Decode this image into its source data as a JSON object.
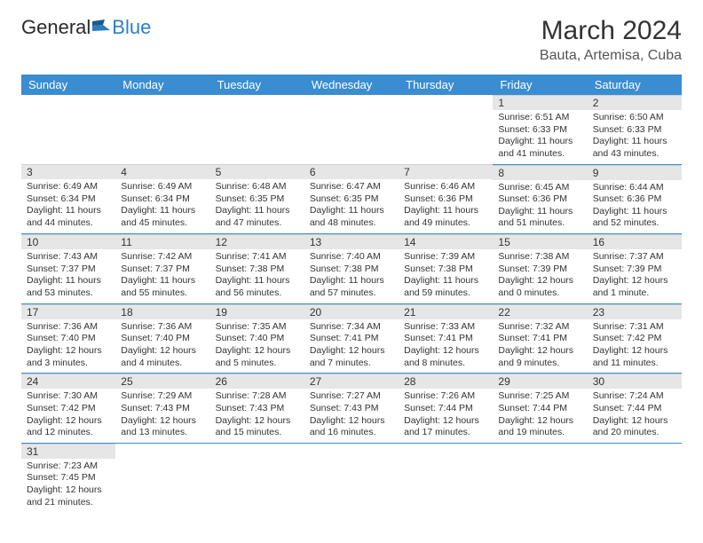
{
  "brand": {
    "part1": "General",
    "part2": "Blue"
  },
  "title": "March 2024",
  "location": "Bauta, Artemisa, Cuba",
  "colors": {
    "header_bg": "#3a8dd0",
    "header_text": "#ffffff",
    "daynum_bg": "#e6e6e6",
    "row_border": "#3a8dd0",
    "logo_blue": "#2a7fc4",
    "logo_dark": "#2a2a2a"
  },
  "weekdays": [
    "Sunday",
    "Monday",
    "Tuesday",
    "Wednesday",
    "Thursday",
    "Friday",
    "Saturday"
  ],
  "weeks": [
    [
      null,
      null,
      null,
      null,
      null,
      {
        "n": "1",
        "sr": "6:51 AM",
        "ss": "6:33 PM",
        "dl": "11 hours and 41 minutes."
      },
      {
        "n": "2",
        "sr": "6:50 AM",
        "ss": "6:33 PM",
        "dl": "11 hours and 43 minutes."
      }
    ],
    [
      {
        "n": "3",
        "sr": "6:49 AM",
        "ss": "6:34 PM",
        "dl": "11 hours and 44 minutes."
      },
      {
        "n": "4",
        "sr": "6:49 AM",
        "ss": "6:34 PM",
        "dl": "11 hours and 45 minutes."
      },
      {
        "n": "5",
        "sr": "6:48 AM",
        "ss": "6:35 PM",
        "dl": "11 hours and 47 minutes."
      },
      {
        "n": "6",
        "sr": "6:47 AM",
        "ss": "6:35 PM",
        "dl": "11 hours and 48 minutes."
      },
      {
        "n": "7",
        "sr": "6:46 AM",
        "ss": "6:36 PM",
        "dl": "11 hours and 49 minutes."
      },
      {
        "n": "8",
        "sr": "6:45 AM",
        "ss": "6:36 PM",
        "dl": "11 hours and 51 minutes."
      },
      {
        "n": "9",
        "sr": "6:44 AM",
        "ss": "6:36 PM",
        "dl": "11 hours and 52 minutes."
      }
    ],
    [
      {
        "n": "10",
        "sr": "7:43 AM",
        "ss": "7:37 PM",
        "dl": "11 hours and 53 minutes."
      },
      {
        "n": "11",
        "sr": "7:42 AM",
        "ss": "7:37 PM",
        "dl": "11 hours and 55 minutes."
      },
      {
        "n": "12",
        "sr": "7:41 AM",
        "ss": "7:38 PM",
        "dl": "11 hours and 56 minutes."
      },
      {
        "n": "13",
        "sr": "7:40 AM",
        "ss": "7:38 PM",
        "dl": "11 hours and 57 minutes."
      },
      {
        "n": "14",
        "sr": "7:39 AM",
        "ss": "7:38 PM",
        "dl": "11 hours and 59 minutes."
      },
      {
        "n": "15",
        "sr": "7:38 AM",
        "ss": "7:39 PM",
        "dl": "12 hours and 0 minutes."
      },
      {
        "n": "16",
        "sr": "7:37 AM",
        "ss": "7:39 PM",
        "dl": "12 hours and 1 minute."
      }
    ],
    [
      {
        "n": "17",
        "sr": "7:36 AM",
        "ss": "7:40 PM",
        "dl": "12 hours and 3 minutes."
      },
      {
        "n": "18",
        "sr": "7:36 AM",
        "ss": "7:40 PM",
        "dl": "12 hours and 4 minutes."
      },
      {
        "n": "19",
        "sr": "7:35 AM",
        "ss": "7:40 PM",
        "dl": "12 hours and 5 minutes."
      },
      {
        "n": "20",
        "sr": "7:34 AM",
        "ss": "7:41 PM",
        "dl": "12 hours and 7 minutes."
      },
      {
        "n": "21",
        "sr": "7:33 AM",
        "ss": "7:41 PM",
        "dl": "12 hours and 8 minutes."
      },
      {
        "n": "22",
        "sr": "7:32 AM",
        "ss": "7:41 PM",
        "dl": "12 hours and 9 minutes."
      },
      {
        "n": "23",
        "sr": "7:31 AM",
        "ss": "7:42 PM",
        "dl": "12 hours and 11 minutes."
      }
    ],
    [
      {
        "n": "24",
        "sr": "7:30 AM",
        "ss": "7:42 PM",
        "dl": "12 hours and 12 minutes."
      },
      {
        "n": "25",
        "sr": "7:29 AM",
        "ss": "7:43 PM",
        "dl": "12 hours and 13 minutes."
      },
      {
        "n": "26",
        "sr": "7:28 AM",
        "ss": "7:43 PM",
        "dl": "12 hours and 15 minutes."
      },
      {
        "n": "27",
        "sr": "7:27 AM",
        "ss": "7:43 PM",
        "dl": "12 hours and 16 minutes."
      },
      {
        "n": "28",
        "sr": "7:26 AM",
        "ss": "7:44 PM",
        "dl": "12 hours and 17 minutes."
      },
      {
        "n": "29",
        "sr": "7:25 AM",
        "ss": "7:44 PM",
        "dl": "12 hours and 19 minutes."
      },
      {
        "n": "30",
        "sr": "7:24 AM",
        "ss": "7:44 PM",
        "dl": "12 hours and 20 minutes."
      }
    ],
    [
      {
        "n": "31",
        "sr": "7:23 AM",
        "ss": "7:45 PM",
        "dl": "12 hours and 21 minutes."
      },
      null,
      null,
      null,
      null,
      null,
      null
    ]
  ],
  "labels": {
    "sunrise": "Sunrise:",
    "sunset": "Sunset:",
    "daylight": "Daylight:"
  }
}
